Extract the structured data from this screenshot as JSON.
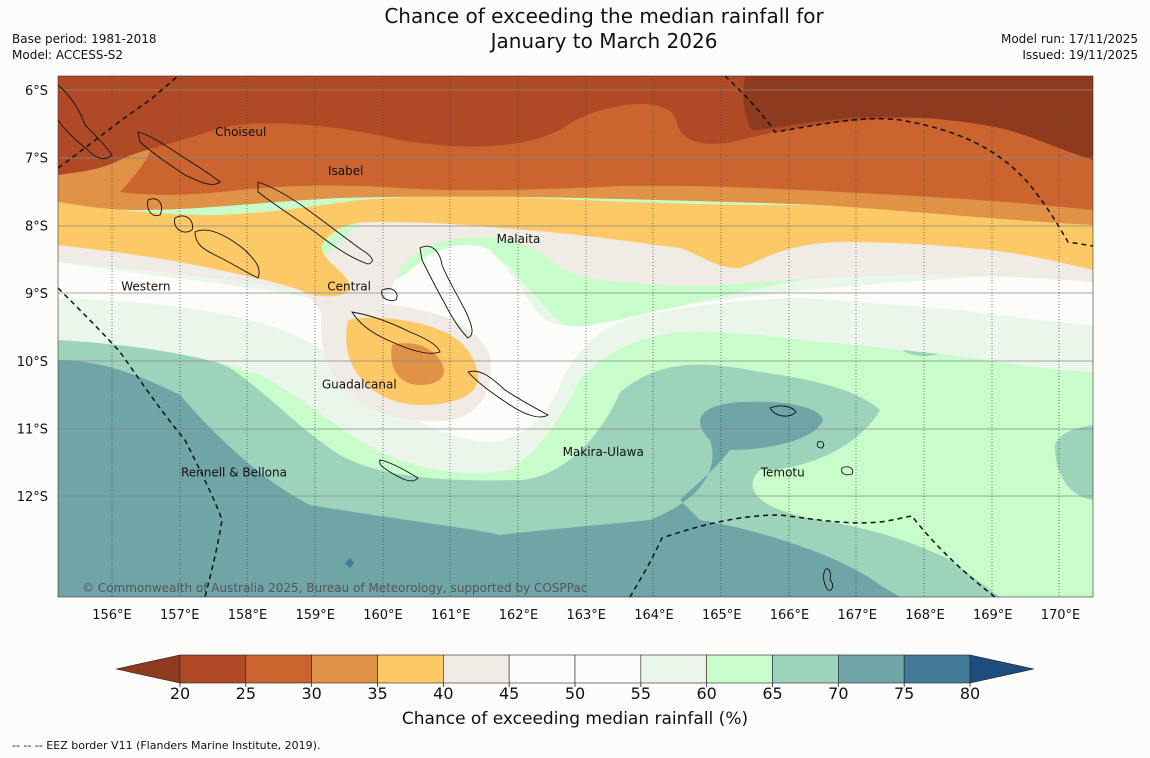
{
  "title": {
    "line1": "Chance of exceeding the median rainfall for",
    "line2": "January to March 2026"
  },
  "meta": {
    "base_period": "Base period: 1981-2018",
    "model": "Model: ACCESS-S2",
    "model_run": "Model run: 17/11/2025",
    "issued": "Issued: 19/11/2025"
  },
  "map": {
    "lat_range": [
      -13.5,
      -5.8
    ],
    "lon_range": [
      155.2,
      170.5
    ],
    "lat_ticks": [
      {
        "value": -6,
        "label": "6°S"
      },
      {
        "value": -7,
        "label": "7°S"
      },
      {
        "value": -8,
        "label": "8°S"
      },
      {
        "value": -9,
        "label": "9°S"
      },
      {
        "value": -10,
        "label": "10°S"
      },
      {
        "value": -11,
        "label": "11°S"
      },
      {
        "value": -12,
        "label": "12°S"
      }
    ],
    "lon_ticks": [
      {
        "value": 156,
        "label": "156°E"
      },
      {
        "value": 157,
        "label": "157°E"
      },
      {
        "value": 158,
        "label": "158°E"
      },
      {
        "value": 159,
        "label": "159°E"
      },
      {
        "value": 160,
        "label": "160°E"
      },
      {
        "value": 161,
        "label": "161°E"
      },
      {
        "value": 162,
        "label": "162°E"
      },
      {
        "value": 163,
        "label": "163°E"
      },
      {
        "value": 164,
        "label": "164°E"
      },
      {
        "value": 165,
        "label": "165°E"
      },
      {
        "value": 166,
        "label": "166°E"
      },
      {
        "value": 167,
        "label": "167°E"
      },
      {
        "value": 168,
        "label": "168°E"
      },
      {
        "value": 169,
        "label": "169°E"
      },
      {
        "value": 170,
        "label": "170°E"
      }
    ],
    "regions": [
      {
        "name": "Choiseul",
        "lat": -6.62,
        "lon": 157.9
      },
      {
        "name": "Isabel",
        "lat": -7.2,
        "lon": 159.45
      },
      {
        "name": "Malaita",
        "lat": -8.2,
        "lon": 162.0
      },
      {
        "name": "Central",
        "lat": -8.9,
        "lon": 159.5
      },
      {
        "name": "Western",
        "lat": -8.9,
        "lon": 156.5
      },
      {
        "name": "Guadalcanal",
        "lat": -10.35,
        "lon": 159.65
      },
      {
        "name": "Makira-Ulawa",
        "lat": -11.35,
        "lon": 163.25
      },
      {
        "name": "Temotu",
        "lat": -11.65,
        "lon": 165.9
      },
      {
        "name": "Rennell & Bellona",
        "lat": -11.65,
        "lon": 157.8
      }
    ],
    "copyright": "© Commonwealth of Australia 2025, Bureau of Meteorology, supported by COSPPac"
  },
  "colorbar": {
    "bins": [
      {
        "from": 20,
        "to": 25,
        "color": "#b04a26"
      },
      {
        "from": 25,
        "to": 30,
        "color": "#cc6430"
      },
      {
        "from": 30,
        "to": 35,
        "color": "#e09246"
      },
      {
        "from": 35,
        "to": 40,
        "color": "#fdc866"
      },
      {
        "from": 40,
        "to": 45,
        "color": "#f0ebe5"
      },
      {
        "from": 45,
        "to": 50,
        "color": "#fcfdfb"
      },
      {
        "from": 50,
        "to": 55,
        "color": "#fcfdfb"
      },
      {
        "from": 55,
        "to": 60,
        "color": "#ebf6ea"
      },
      {
        "from": 60,
        "to": 65,
        "color": "#c8fcca"
      },
      {
        "from": 65,
        "to": 70,
        "color": "#9dd2bb"
      },
      {
        "from": 70,
        "to": 75,
        "color": "#6fa5a7"
      },
      {
        "from": 75,
        "to": 80,
        "color": "#437a98"
      }
    ],
    "under_color": "#8e3a1e",
    "over_color": "#1c4d7d",
    "ticks": [
      "20",
      "25",
      "30",
      "35",
      "40",
      "45",
      "50",
      "55",
      "60",
      "65",
      "70",
      "75",
      "80"
    ],
    "label": "Chance of exceeding median rainfall (%)"
  },
  "footnote": "--  --  -- EEZ border V11 (Flanders Marine Institute, 2019)."
}
